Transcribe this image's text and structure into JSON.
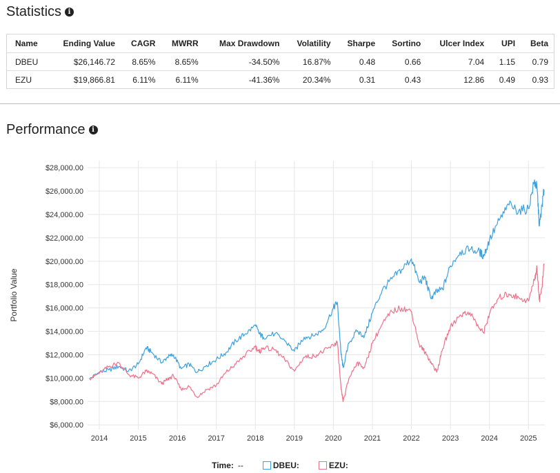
{
  "statistics": {
    "title": "Statistics",
    "columns": [
      "Name",
      "Ending Value",
      "CAGR",
      "MWRR",
      "Max Drawdown",
      "Volatility",
      "Sharpe",
      "Sortino",
      "Ulcer Index",
      "UPI",
      "Beta"
    ],
    "rows": [
      [
        "DBEU",
        "$26,146.72",
        "8.65%",
        "8.65%",
        "-34.50%",
        "16.87%",
        "0.48",
        "0.66",
        "7.04",
        "1.15",
        "0.79"
      ],
      [
        "EZU",
        "$19,866.81",
        "6.11%",
        "6.11%",
        "-41.36%",
        "20.34%",
        "0.31",
        "0.43",
        "12.86",
        "0.49",
        "0.93"
      ]
    ]
  },
  "performance": {
    "title": "Performance"
  },
  "legend": {
    "time_label": "Time:",
    "time_value": "--",
    "dbeu_label": "DBEU:",
    "ezu_label": "EZU:"
  },
  "chart_data": {
    "type": "line",
    "title": "Performance",
    "xlabel": "",
    "ylabel": "Portfolio Value",
    "x_ticks": [
      "2014",
      "2015",
      "2016",
      "2017",
      "2018",
      "2019",
      "2020",
      "2021",
      "2022",
      "2023",
      "2024",
      "2025"
    ],
    "y_ticks": [
      "$6,000.00",
      "$8,000.00",
      "$10,000.00",
      "$12,000.00",
      "$14,000.00",
      "$16,000.00",
      "$18,000.00",
      "$20,000.00",
      "$22,000.00",
      "$24,000.00",
      "$26,000.00",
      "$28,000.00"
    ],
    "xlim": [
      2013.7,
      2025.42
    ],
    "ylim": [
      5600,
      28600
    ],
    "grid": true,
    "legend_position": "bottom",
    "colors": {
      "DBEU": "#3ba1e0",
      "EZU": "#f07089"
    },
    "series": [
      {
        "name": "DBEU",
        "x": [
          2013.75,
          2014.0,
          2014.25,
          2014.5,
          2014.75,
          2015.0,
          2015.2,
          2015.35,
          2015.6,
          2015.75,
          2015.9,
          2016.1,
          2016.3,
          2016.5,
          2016.75,
          2017.0,
          2017.25,
          2017.5,
          2017.75,
          2018.0,
          2018.1,
          2018.2,
          2018.5,
          2018.75,
          2019.0,
          2019.25,
          2019.5,
          2019.75,
          2020.0,
          2020.1,
          2020.2,
          2020.25,
          2020.4,
          2020.6,
          2020.8,
          2021.0,
          2021.25,
          2021.5,
          2021.75,
          2022.0,
          2022.2,
          2022.35,
          2022.5,
          2022.65,
          2022.8,
          2023.0,
          2023.25,
          2023.5,
          2023.75,
          2023.85,
          2024.0,
          2024.25,
          2024.5,
          2024.75,
          2025.0,
          2025.15,
          2025.22,
          2025.28,
          2025.35,
          2025.4
        ],
        "y": [
          9900,
          10500,
          10700,
          11000,
          10600,
          11200,
          12600,
          12200,
          11300,
          11800,
          12000,
          10800,
          11200,
          10500,
          11100,
          11600,
          12200,
          13200,
          13800,
          14500,
          13800,
          13500,
          13800,
          13200,
          12300,
          13500,
          13600,
          14200,
          16000,
          16500,
          12000,
          10900,
          13000,
          14000,
          13600,
          15600,
          17500,
          18500,
          19300,
          20200,
          18200,
          18600,
          16800,
          17400,
          17600,
          19600,
          20800,
          21000,
          20800,
          20400,
          21800,
          23500,
          24800,
          24300,
          24500,
          26800,
          26300,
          23000,
          24800,
          26100
        ]
      },
      {
        "name": "EZU",
        "x": [
          2013.75,
          2014.0,
          2014.25,
          2014.5,
          2014.75,
          2015.0,
          2015.2,
          2015.35,
          2015.6,
          2015.75,
          2015.9,
          2016.1,
          2016.3,
          2016.5,
          2016.75,
          2017.0,
          2017.25,
          2017.5,
          2017.75,
          2018.0,
          2018.1,
          2018.2,
          2018.5,
          2018.75,
          2019.0,
          2019.25,
          2019.5,
          2019.75,
          2020.0,
          2020.1,
          2020.2,
          2020.25,
          2020.4,
          2020.6,
          2020.8,
          2021.0,
          2021.25,
          2021.5,
          2021.75,
          2022.0,
          2022.2,
          2022.35,
          2022.5,
          2022.65,
          2022.8,
          2023.0,
          2023.25,
          2023.5,
          2023.75,
          2023.85,
          2024.0,
          2024.25,
          2024.5,
          2024.75,
          2025.0,
          2025.15,
          2025.22,
          2025.28,
          2025.35,
          2025.4
        ],
        "y": [
          9950,
          10400,
          11000,
          11300,
          10300,
          10000,
          10600,
          10400,
          9500,
          9900,
          10200,
          9000,
          9300,
          8400,
          9000,
          9400,
          10500,
          11200,
          12000,
          12700,
          12200,
          12600,
          12400,
          11600,
          10600,
          11800,
          11900,
          12300,
          12800,
          13100,
          9000,
          8000,
          10000,
          11300,
          10900,
          13000,
          14600,
          15700,
          16000,
          15700,
          12900,
          12200,
          11400,
          10500,
          12500,
          14400,
          15400,
          15600,
          14200,
          13900,
          15500,
          16900,
          17200,
          16900,
          16600,
          18400,
          19400,
          16700,
          17800,
          19800
        ]
      }
    ]
  }
}
